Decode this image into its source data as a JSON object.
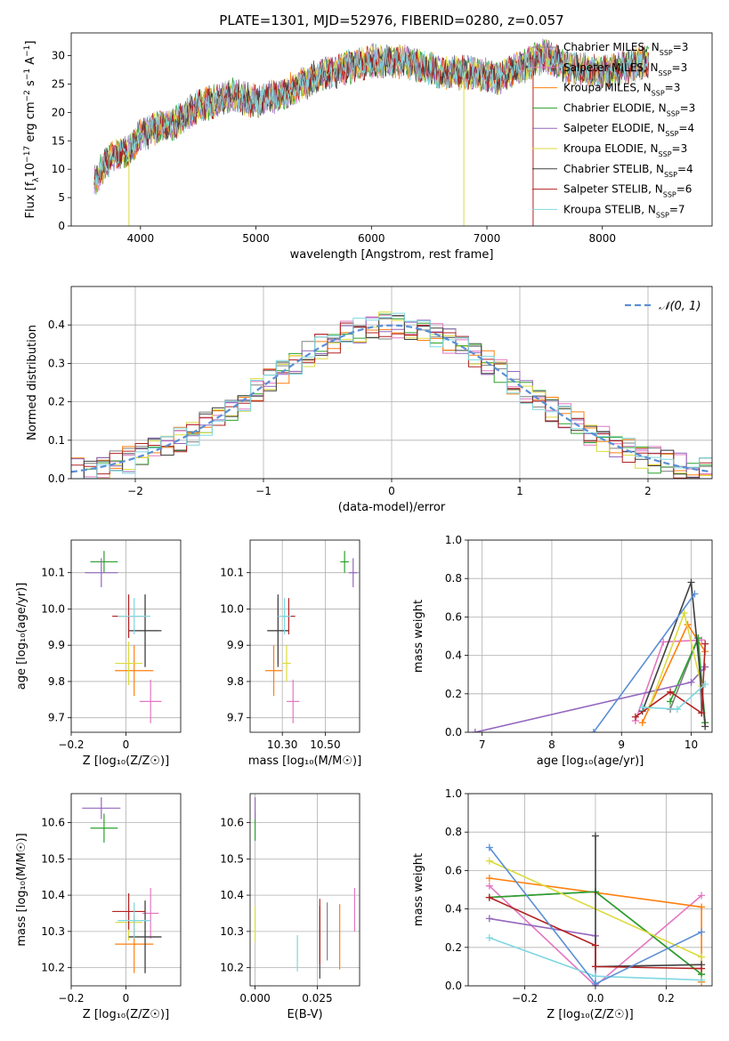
{
  "figure_title": "PLATE=1301, MJD=52976, FIBERID=0280, z=0.057",
  "series_styles": [
    {
      "label": "Chabrier MILES, N",
      "sub": "SSP",
      "count": "=3",
      "color": "#808080"
    },
    {
      "label": "Salpeter MILES, N",
      "sub": "SSP",
      "count": "=3",
      "color": "#e377c2"
    },
    {
      "label": "Kroupa MILES, N",
      "sub": "SSP",
      "count": "=3",
      "color": "#ff7f0e"
    },
    {
      "label": "Chabrier ELODIE, N",
      "sub": "SSP",
      "count": "=3",
      "color": "#2ca02c"
    },
    {
      "label": "Salpeter ELODIE, N",
      "sub": "SSP",
      "count": "=4",
      "color": "#9467bd"
    },
    {
      "label": "Kroupa ELODIE, N",
      "sub": "SSP",
      "count": "=3",
      "color": "#dbdb3d"
    },
    {
      "label": "Chabrier STELIB, N",
      "sub": "SSP",
      "count": "=4",
      "color": "#404040"
    },
    {
      "label": "Salpeter STELIB, N",
      "sub": "SSP",
      "count": "=6",
      "color": "#b22222"
    },
    {
      "label": "Kroupa STELIB, N",
      "sub": "SSP",
      "count": "=7",
      "color": "#7fd7e0"
    }
  ],
  "chart_data": [
    {
      "id": "spectrum",
      "type": "line",
      "xlabel": "wavelength [Angstrom, rest frame]",
      "ylabel_parts": [
        "Flux [f",
        "λ",
        "10",
        "−17",
        " erg cm",
        "−2",
        " s",
        "−1",
        " A",
        "−1",
        "]"
      ],
      "xlim": [
        3400,
        8950
      ],
      "ylim": [
        0,
        34
      ],
      "xticks": [
        4000,
        5000,
        6000,
        7000,
        8000
      ],
      "yticks": [
        0,
        5,
        10,
        15,
        20,
        25,
        30
      ],
      "grid": false,
      "legend_position": "right",
      "continuum": {
        "x": [
          3600,
          3700,
          3800,
          3900,
          4000,
          4100,
          4300,
          4500,
          4800,
          5000,
          5200,
          5500,
          5800,
          6000,
          6300,
          6600,
          6900,
          7100,
          7300,
          7500,
          7700,
          8000,
          8400
        ],
        "y": [
          8,
          11,
          13,
          13,
          16,
          17,
          18,
          21,
          23,
          22,
          23,
          26,
          28,
          29,
          29,
          27,
          27,
          26,
          28,
          30,
          28,
          27,
          29
        ]
      },
      "spikes_down": [
        {
          "x": 3900,
          "y": 0
        },
        {
          "x": 6800,
          "y": 0
        },
        {
          "x": 7400,
          "y": 0
        }
      ]
    },
    {
      "id": "residuals",
      "type": "histogram",
      "xlabel": "(data-model)/error",
      "ylabel": "Normed distribution",
      "xlim": [
        -2.5,
        2.5
      ],
      "ylim": [
        0,
        0.5
      ],
      "xticks": [
        -2,
        -1,
        0,
        1,
        2
      ],
      "yticks": [
        0.0,
        0.1,
        0.2,
        0.3,
        0.4
      ],
      "grid": true,
      "bin_width": 0.1,
      "legend_position": "top-right",
      "reference_curve_label": "𝒩(0, 1)",
      "reference_color": "#5b8fd6"
    },
    {
      "id": "age-vs-Z",
      "type": "errorbar",
      "xlabel": "Z [log₁₀(Z/Z☉)]",
      "ylabel": "age  [log₁₀(age/yr)]",
      "xlim": [
        -0.2,
        0.2
      ],
      "ylim": [
        9.66,
        10.19
      ],
      "xticks": [
        -0.2,
        0.0
      ],
      "yticks": [
        9.7,
        9.8,
        9.9,
        10.0,
        10.1
      ],
      "grid": true,
      "points": [
        {
          "s": 0,
          "x": 0.07,
          "y": 9.94,
          "xe": 0.05,
          "ye": 0.1
        },
        {
          "s": 1,
          "x": 0.09,
          "y": 9.745,
          "xe": 0.04,
          "ye": 0.06
        },
        {
          "s": 2,
          "x": 0.03,
          "y": 9.83,
          "xe": 0.07,
          "ye": 0.07
        },
        {
          "s": 3,
          "x": -0.08,
          "y": 10.13,
          "xe": 0.05,
          "ye": 0.03
        },
        {
          "s": 4,
          "x": -0.09,
          "y": 10.1,
          "xe": 0.06,
          "ye": 0.04
        },
        {
          "s": 5,
          "x": 0.01,
          "y": 9.85,
          "xe": 0.05,
          "ye": 0.06
        },
        {
          "s": 6,
          "x": 0.07,
          "y": 9.94,
          "xe": 0.06,
          "ye": 0.1
        },
        {
          "s": 7,
          "x": 0.01,
          "y": 9.98,
          "xe": 0.06,
          "ye": 0.06
        },
        {
          "s": 8,
          "x": 0.03,
          "y": 9.98,
          "xe": 0.06,
          "ye": 0.05
        }
      ]
    },
    {
      "id": "age-vs-mass",
      "type": "errorbar",
      "xlabel": "mass [log₁₀(M/M☉)]",
      "ylabel": "",
      "xlim": [
        10.15,
        10.66
      ],
      "ylim": [
        9.66,
        10.19
      ],
      "xticks": [
        10.3,
        10.5
      ],
      "ytick_values": [
        9.7,
        9.8,
        9.9,
        10.0,
        10.1
      ],
      "xtick_labels": [
        "10.30",
        "10.50"
      ],
      "ytick_labels": [
        "9.7",
        "9.8",
        "9.9",
        "10.0",
        "10.1"
      ],
      "grid": true,
      "points": [
        {
          "s": 0,
          "x": 10.28,
          "y": 9.94,
          "xe": 0.05,
          "ye": 0.09
        },
        {
          "s": 1,
          "x": 10.35,
          "y": 9.745,
          "xe": 0.03,
          "ye": 0.06
        },
        {
          "s": 2,
          "x": 10.26,
          "y": 9.83,
          "xe": 0.04,
          "ye": 0.07
        },
        {
          "s": 3,
          "x": 10.59,
          "y": 10.13,
          "xe": 0.02,
          "ye": 0.03
        },
        {
          "s": 4,
          "x": 10.63,
          "y": 10.1,
          "xe": 0.02,
          "ye": 0.04
        },
        {
          "s": 5,
          "x": 10.32,
          "y": 9.85,
          "xe": 0.02,
          "ye": 0.05
        },
        {
          "s": 6,
          "x": 10.28,
          "y": 9.94,
          "xe": 0.05,
          "ye": 0.1
        },
        {
          "s": 7,
          "x": 10.33,
          "y": 9.98,
          "xe": 0.03,
          "ye": 0.05
        },
        {
          "s": 8,
          "x": 10.31,
          "y": 9.98,
          "xe": 0.03,
          "ye": 0.05
        }
      ]
    },
    {
      "id": "weight-vs-age",
      "type": "line",
      "xlabel": "age  [log₁₀(age/yr)]",
      "ylabel": "mass weight",
      "xlim": [
        6.8,
        10.3
      ],
      "ylim": [
        0,
        1
      ],
      "xticks": [
        7,
        8,
        9,
        10
      ],
      "yticks": [
        0.0,
        0.2,
        0.4,
        0.6,
        0.8,
        1.0
      ],
      "grid": true,
      "series": [
        {
          "s": 0,
          "x": [
            9.7,
            10.1,
            10.15
          ],
          "y": [
            0.12,
            0.49,
            0.1
          ]
        },
        {
          "s": 1,
          "x": [
            9.2,
            9.6,
            10.15
          ],
          "y": [
            0.06,
            0.47,
            0.48
          ]
        },
        {
          "s": 2,
          "x": [
            9.3,
            9.95,
            10.2
          ],
          "y": [
            0.05,
            0.56,
            0.42
          ]
        },
        {
          "s": 3,
          "x": [
            9.7,
            10.1,
            10.2
          ],
          "y": [
            0.16,
            0.49,
            0.05
          ]
        },
        {
          "s": 4,
          "x": [
            6.9,
            10.0,
            10.2
          ],
          "y": [
            0.0,
            0.26,
            0.34
          ]
        },
        {
          "s": 5,
          "x": [
            9.4,
            9.9,
            10.15
          ],
          "y": [
            0.13,
            0.62,
            0.24
          ]
        },
        {
          "s": 6,
          "x": [
            9.3,
            10.0,
            10.2
          ],
          "y": [
            0.11,
            0.78,
            0.03
          ]
        },
        {
          "s": 7,
          "x": [
            9.2,
            9.7,
            10.15,
            10.2
          ],
          "y": [
            0.08,
            0.21,
            0.1,
            0.46
          ]
        },
        {
          "s": 8,
          "x": [
            9.3,
            9.8,
            10.2
          ],
          "y": [
            0.13,
            0.12,
            0.25
          ]
        },
        {
          "s": 10,
          "x": [
            8.6,
            10.05
          ],
          "y": [
            0.0,
            0.72
          ]
        }
      ]
    },
    {
      "id": "mass-vs-Z",
      "type": "errorbar",
      "xlabel": "Z [log₁₀(Z/Z☉)]",
      "ylabel": "mass [log₁₀(M/M☉)]",
      "xlim": [
        -0.2,
        0.2
      ],
      "ylim": [
        10.15,
        10.68
      ],
      "xticks": [
        -0.2,
        0.0
      ],
      "ytick_values": [
        10.2,
        10.3,
        10.4,
        10.5,
        10.6
      ],
      "ytick_labels": [
        "10.2",
        "10.3",
        "10.4",
        "10.5",
        "10.6"
      ],
      "grid": true,
      "points": [
        {
          "s": 0,
          "x": 0.07,
          "y": 10.285,
          "xe": 0.06,
          "ye": 0.1
        },
        {
          "s": 1,
          "x": 0.09,
          "y": 10.35,
          "xe": 0.03,
          "ye": 0.07
        },
        {
          "s": 2,
          "x": 0.03,
          "y": 10.265,
          "xe": 0.07,
          "ye": 0.08
        },
        {
          "s": 3,
          "x": -0.08,
          "y": 10.585,
          "xe": 0.05,
          "ye": 0.04
        },
        {
          "s": 4,
          "x": -0.09,
          "y": 10.64,
          "xe": 0.07,
          "ye": 0.03
        },
        {
          "s": 5,
          "x": 0.01,
          "y": 10.325,
          "xe": 0.05,
          "ye": 0.05
        },
        {
          "s": 6,
          "x": 0.07,
          "y": 10.285,
          "xe": 0.06,
          "ye": 0.1
        },
        {
          "s": 7,
          "x": 0.01,
          "y": 10.355,
          "xe": 0.06,
          "ye": 0.05
        },
        {
          "s": 8,
          "x": 0.03,
          "y": 10.33,
          "xe": 0.06,
          "ye": 0.05
        }
      ]
    },
    {
      "id": "mass-vs-ebv",
      "type": "errorbar",
      "xlabel": "E(B-V)",
      "ylabel": "",
      "xlim": [
        -0.002,
        0.042
      ],
      "ylim": [
        10.15,
        10.68
      ],
      "xticks": [
        0.0,
        0.025
      ],
      "xtick_labels": [
        "0.000",
        "0.025"
      ],
      "ytick_values": [
        10.2,
        10.3,
        10.4,
        10.5,
        10.6
      ],
      "ytick_labels": [
        "10.2",
        "10.3",
        "10.4",
        "10.5",
        "10.6"
      ],
      "grid": true,
      "points": [
        {
          "s": 0,
          "x": 0.029,
          "y": 10.3,
          "xe": 0,
          "ye": 0.08
        },
        {
          "s": 1,
          "x": 0.04,
          "y": 10.36,
          "xe": 0,
          "ye": 0.06
        },
        {
          "s": 2,
          "x": 0.034,
          "y": 10.285,
          "xe": 0,
          "ye": 0.09
        },
        {
          "s": 3,
          "x": 0.0,
          "y": 10.59,
          "xe": 0,
          "ye": 0.04
        },
        {
          "s": 4,
          "x": 0.0,
          "y": 10.64,
          "xe": 0,
          "ye": 0.03
        },
        {
          "s": 5,
          "x": 0.0,
          "y": 10.32,
          "xe": 0,
          "ye": 0.05
        },
        {
          "s": 6,
          "x": 0.026,
          "y": 10.27,
          "xe": 0,
          "ye": 0.1
        },
        {
          "s": 7,
          "x": 0.026,
          "y": 10.3,
          "xe": 0,
          "ye": 0.09
        },
        {
          "s": 8,
          "x": 0.017,
          "y": 10.24,
          "xe": 0,
          "ye": 0.05
        }
      ]
    },
    {
      "id": "weight-vs-Z",
      "type": "line",
      "xlabel": "Z [log₁₀(Z/Z☉)]",
      "ylabel": "mass weight",
      "xlim": [
        -0.36,
        0.33
      ],
      "ylim": [
        0,
        1
      ],
      "xticks": [
        -0.2,
        0.0,
        0.2
      ],
      "xtick_labels": [
        "−0.2",
        "0.0",
        "0.2"
      ],
      "yticks": [
        0.0,
        0.2,
        0.4,
        0.6,
        0.8,
        1.0
      ],
      "grid": true,
      "series": [
        {
          "s": 0,
          "x": [
            -0.3,
            0.0,
            0.3
          ],
          "y": [
            0.46,
            0.49,
            0.06
          ]
        },
        {
          "s": 1,
          "x": [
            -0.3,
            0.0,
            0.3
          ],
          "y": [
            0.52,
            0.0,
            0.47
          ]
        },
        {
          "s": 2,
          "x": [
            -0.3,
            0.3,
            0.3
          ],
          "y": [
            0.56,
            0.41,
            0.02
          ]
        },
        {
          "s": 3,
          "x": [
            -0.3,
            0.0,
            0.3
          ],
          "y": [
            0.46,
            0.49,
            0.06
          ]
        },
        {
          "s": 4,
          "x": [
            -0.3,
            0.0,
            0.0
          ],
          "y": [
            0.35,
            0.26,
            0.0
          ]
        },
        {
          "s": 5,
          "x": [
            -0.3,
            0.3
          ],
          "y": [
            0.65,
            0.15
          ]
        },
        {
          "s": 6,
          "x": [
            0.0,
            0.0,
            0.3
          ],
          "y": [
            0.78,
            0.1,
            0.11
          ]
        },
        {
          "s": 7,
          "x": [
            -0.3,
            0.0,
            0.0,
            0.3
          ],
          "y": [
            0.46,
            0.21,
            0.1,
            0.09
          ]
        },
        {
          "s": 8,
          "x": [
            -0.3,
            0.0,
            0.3
          ],
          "y": [
            0.25,
            0.05,
            0.03
          ]
        },
        {
          "s": 10,
          "x": [
            -0.3,
            0.0,
            0.3
          ],
          "y": [
            0.72,
            0.01,
            0.28
          ]
        }
      ]
    }
  ],
  "extra_colors": {
    "10": "#5b8fd6"
  }
}
